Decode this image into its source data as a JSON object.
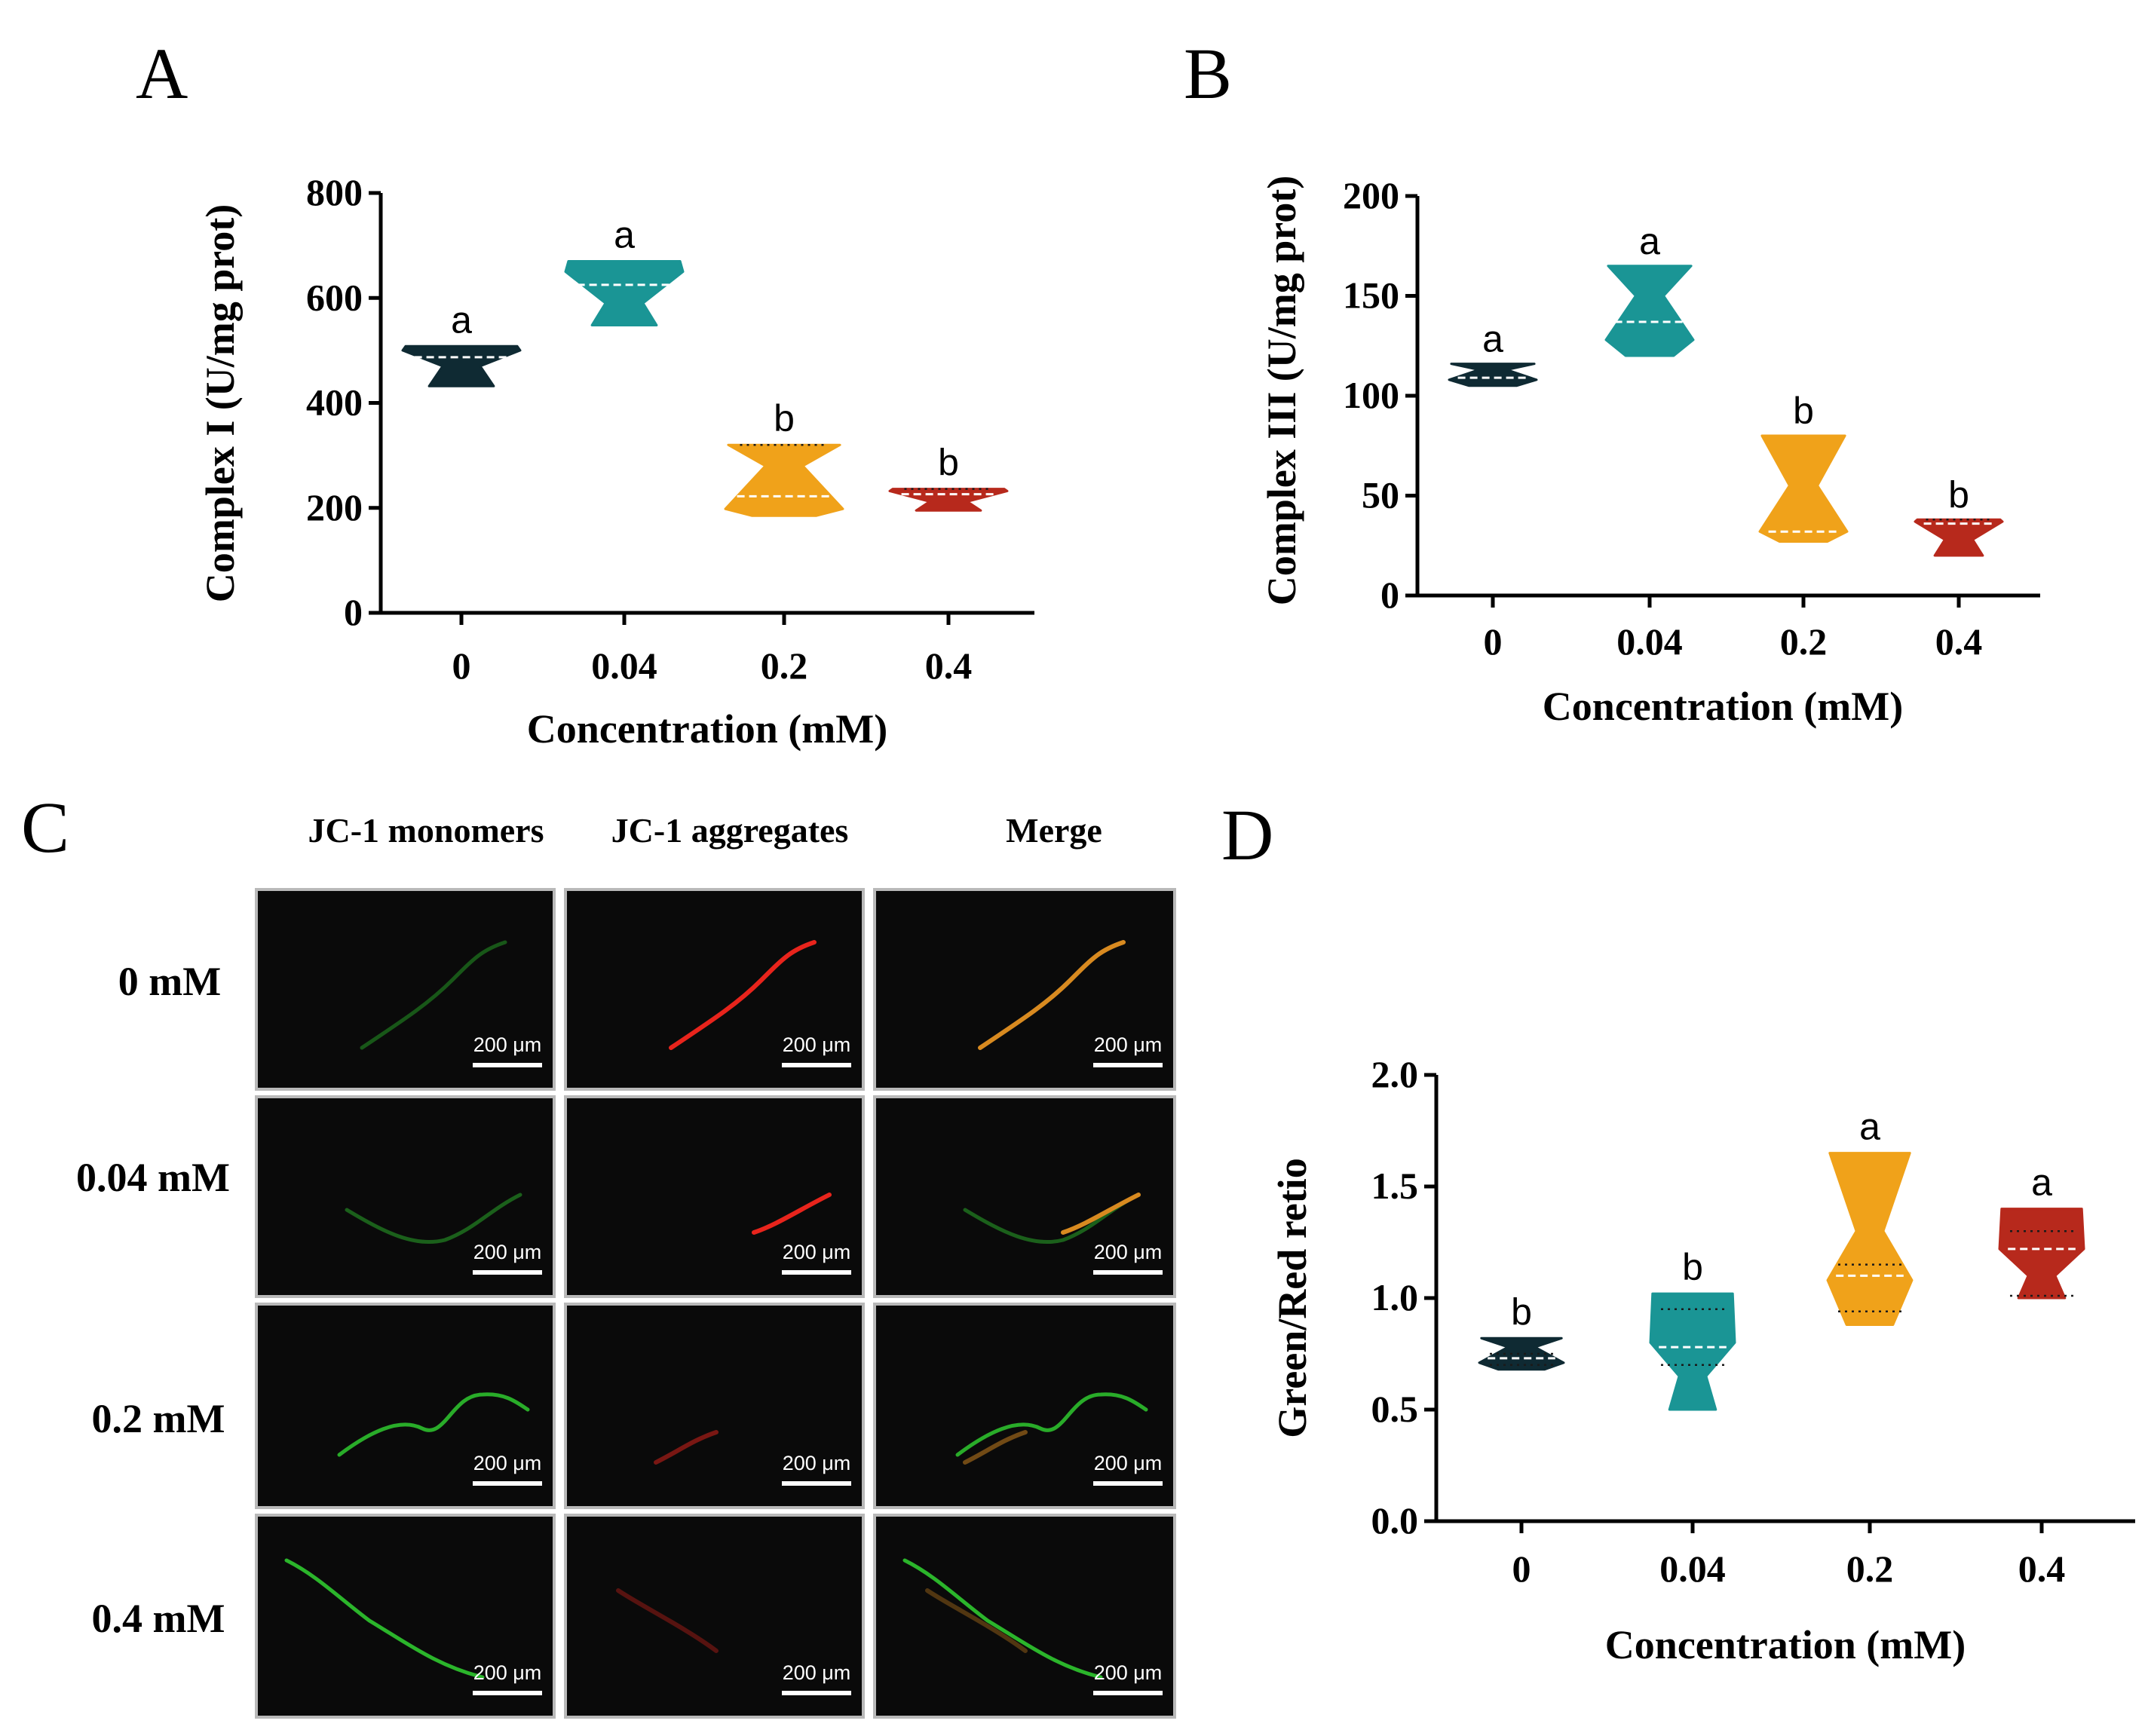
{
  "panels": {
    "A": {
      "letter": "A"
    },
    "B": {
      "letter": "B"
    },
    "C": {
      "letter": "C"
    },
    "D": {
      "letter": "D"
    }
  },
  "chart_data": [
    {
      "id": "A",
      "type": "violin",
      "ylabel": "Complex I (U/mg prot)",
      "xlabel": "Concentration (mM)",
      "categories": [
        "0",
        "0.04",
        "0.2",
        "0.4"
      ],
      "ylim": [
        0,
        800
      ],
      "yticks": [
        "0",
        "200",
        "400",
        "600",
        "800"
      ],
      "yticks_values": [
        0,
        200,
        400,
        600,
        800
      ],
      "colors": [
        "#0f2a33",
        "#1a9595",
        "#f0a21a",
        "#b7291c"
      ],
      "violins": [
        {
          "min": 432,
          "max": 508,
          "median": 487,
          "q1": null,
          "q3": null,
          "widest": 500,
          "narrowest": 470
        },
        {
          "min": 548,
          "max": 670,
          "median": 625,
          "q1": null,
          "q3": null,
          "widest": 650,
          "narrowest": 590
        },
        {
          "min": 185,
          "max": 320,
          "median": 222,
          "q1": null,
          "q3": 320,
          "widest": 198,
          "narrowest": 280
        },
        {
          "min": 195,
          "max": 236,
          "median": 226,
          "q1": null,
          "q3": 236,
          "widest": 232,
          "narrowest": 212
        }
      ],
      "significance": [
        "a",
        "a",
        "b",
        "b"
      ]
    },
    {
      "id": "B",
      "type": "violin",
      "ylabel": "Complex III (U/mg prot)",
      "xlabel": "Concentration (mM)",
      "categories": [
        "0",
        "0.04",
        "0.2",
        "0.4"
      ],
      "ylim": [
        0,
        200
      ],
      "yticks": [
        "0",
        "50",
        "100",
        "150",
        "200"
      ],
      "yticks_values": [
        0,
        50,
        100,
        150,
        200
      ],
      "colors": [
        "#0f2a33",
        "#1a9595",
        "#f0a21a",
        "#b7291c"
      ],
      "violins": [
        {
          "min": 105,
          "max": 116,
          "median": 109,
          "q1": null,
          "q3": null,
          "widest": 108,
          "narrowest": 113
        },
        {
          "min": 120,
          "max": 165,
          "median": 137,
          "q1": null,
          "q3": null,
          "widest": 128,
          "narrowest": 150
        },
        {
          "min": 27,
          "max": 80,
          "median": 32,
          "q1": null,
          "q3": null,
          "widest": 32,
          "narrowest": 55
        },
        {
          "min": 20,
          "max": 38,
          "median": 36,
          "q1": null,
          "q3": 38,
          "widest": 37,
          "narrowest": 28
        }
      ],
      "significance": [
        "a",
        "a",
        "b",
        "b"
      ]
    },
    {
      "id": "D",
      "type": "violin",
      "ylabel": "Green/Red retio",
      "xlabel": "Concentration (mM)",
      "categories": [
        "0",
        "0.04",
        "0.2",
        "0.4"
      ],
      "ylim": [
        0,
        2.0
      ],
      "yticks": [
        "0.0",
        "0.5",
        "1.0",
        "1.5",
        "2.0"
      ],
      "yticks_values": [
        0,
        0.5,
        1.0,
        1.5,
        2.0
      ],
      "colors": [
        "#0f2a33",
        "#1a9595",
        "#f0a21a",
        "#b7291c"
      ],
      "violins": [
        {
          "min": 0.68,
          "max": 0.82,
          "median": 0.73,
          "q1": 0.7,
          "q3": 0.75,
          "widest": 0.71,
          "narrowest": 0.78
        },
        {
          "min": 0.5,
          "max": 1.02,
          "median": 0.78,
          "q1": 0.7,
          "q3": 0.95,
          "widest": 0.8,
          "narrowest": 0.65
        },
        {
          "min": 0.88,
          "max": 1.65,
          "median": 1.1,
          "q1": 0.94,
          "q3": 1.15,
          "widest": 1.08,
          "narrowest": 1.3
        },
        {
          "min": 1.0,
          "max": 1.4,
          "median": 1.22,
          "q1": 1.01,
          "q3": 1.3,
          "widest": 1.22,
          "narrowest": 1.1
        }
      ],
      "significance": [
        "b",
        "b",
        "a",
        "a"
      ]
    }
  ],
  "microscopy": {
    "column_headers": [
      "JC-1 monomers",
      "JC-1 aggregates",
      "Merge"
    ],
    "row_labels": [
      "0 mM",
      "0.04 mM",
      "0.2 mM",
      "0.4 mM"
    ],
    "scale_bar_label": "200 μm",
    "monomer_color": "#2bb52b",
    "aggregate_color": "#e8241c",
    "merge_color": "#d88a20"
  }
}
